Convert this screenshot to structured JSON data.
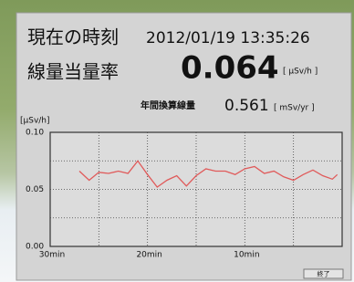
{
  "window": {
    "time_label": "現在の時刻",
    "time": "2012/01/19 13:35:26",
    "rate_label": "線量当量率",
    "rate": 0.064,
    "rate_unit": "[ μSv/h ]",
    "annual_label": "年間換算線量",
    "annual": 0.561,
    "annual_unit": "[ mSv/yr ]",
    "button": "終了"
  },
  "chart_data": {
    "type": "line",
    "ylabel": "[μSv/h]",
    "x": [
      27,
      26,
      25,
      24,
      23,
      22,
      21,
      20,
      19,
      18,
      17,
      16,
      15,
      14,
      13,
      12,
      11,
      10,
      9,
      8,
      7,
      6,
      5,
      4,
      3,
      2,
      1,
      0.5
    ],
    "values": [
      0.066,
      0.058,
      0.065,
      0.064,
      0.066,
      0.064,
      0.075,
      0.063,
      0.052,
      0.058,
      0.062,
      0.053,
      0.062,
      0.068,
      0.066,
      0.066,
      0.063,
      0.068,
      0.07,
      0.064,
      0.066,
      0.061,
      0.058,
      0.063,
      0.067,
      0.062,
      0.059,
      0.063
    ],
    "color": "#e05a5a",
    "xlim": [
      30,
      0
    ],
    "xticks": [
      {
        "value": 30,
        "label": "30min"
      },
      {
        "value": 20,
        "label": "20min"
      },
      {
        "value": 10,
        "label": "10min"
      }
    ],
    "minor_xticks": [
      25,
      15,
      5
    ],
    "ylim": [
      0,
      0.1
    ],
    "yticks": [
      {
        "value": 0,
        "label": "0.00"
      },
      {
        "value": 0.05,
        "label": "0.05"
      },
      {
        "value": 0.1,
        "label": "0.10"
      }
    ],
    "minor_yticks": [
      0.025,
      0.075
    ],
    "grid": true
  }
}
